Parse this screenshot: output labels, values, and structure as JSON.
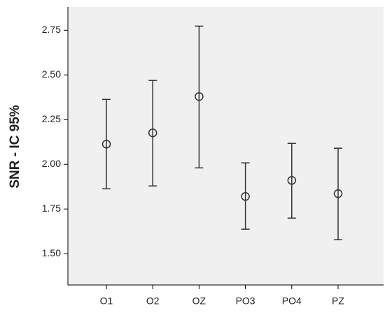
{
  "chart_data": {
    "type": "errorbar",
    "y_label": "SNR - IC 95%",
    "categories": [
      "O1",
      "O2",
      "OZ",
      "PO3",
      "PO4",
      "PZ"
    ],
    "values": [
      2.113,
      2.176,
      2.379,
      1.82,
      1.91,
      1.836
    ],
    "lower": [
      1.863,
      1.879,
      1.98,
      1.637,
      1.699,
      1.578
    ],
    "upper": [
      2.363,
      2.469,
      2.773,
      2.008,
      2.117,
      2.09
    ],
    "color": "#333333",
    "ylim": [
      1.325,
      2.88
    ],
    "yticks": [
      {
        "value": 1.5,
        "label": "1.50"
      },
      1.75,
      {
        "value": 2,
        "label": "2.00"
      },
      2.25,
      {
        "value": 2.5,
        "label": "2.50"
      },
      2.75
    ]
  }
}
